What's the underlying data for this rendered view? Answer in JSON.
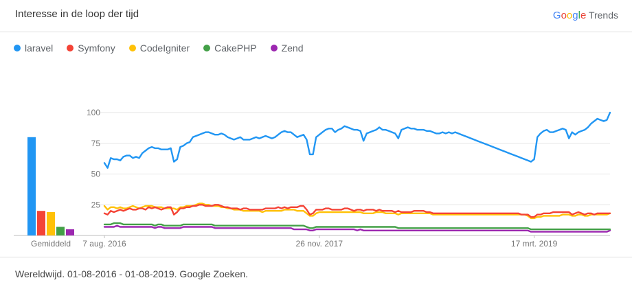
{
  "header": {
    "title": "Interesse in de loop der tijd"
  },
  "brand": {
    "letters": [
      {
        "ch": "G",
        "color": "#4285F4"
      },
      {
        "ch": "o",
        "color": "#EA4335"
      },
      {
        "ch": "o",
        "color": "#FBBC05"
      },
      {
        "ch": "g",
        "color": "#4285F4"
      },
      {
        "ch": "l",
        "color": "#34A853"
      },
      {
        "ch": "e",
        "color": "#EA4335"
      }
    ],
    "suffix": "Trends"
  },
  "footer": {
    "text": "Wereldwijd. 01-08-2016 - 01-08-2019. Google Zoeken."
  },
  "chart_data": {
    "type": "line",
    "ylim": [
      0,
      100
    ],
    "yticks": [
      "100",
      "75",
      "50",
      "25"
    ],
    "ytick_values": [
      100,
      75,
      50,
      25
    ],
    "xticks": [
      {
        "label": "7 aug. 2016",
        "index": 0
      },
      {
        "label": "26 nov. 2017",
        "index": 68
      },
      {
        "label": "17 mrt. 2019",
        "index": 136
      }
    ],
    "legend_position": "top-left",
    "average_label": "Gemiddeld",
    "series": [
      {
        "name": "laravel",
        "color": "#2196F3",
        "average": 80,
        "values": [
          59,
          55,
          63,
          62,
          62,
          61,
          64,
          65,
          65,
          63,
          64,
          63,
          67,
          69,
          71,
          72,
          71,
          71,
          70,
          70,
          70,
          71,
          60,
          62,
          72,
          73,
          75,
          76,
          80,
          81,
          82,
          83,
          84,
          84,
          83,
          82,
          82,
          83,
          82,
          80,
          79,
          78,
          79,
          80,
          78,
          78,
          78,
          79,
          80,
          79,
          80,
          81,
          80,
          79,
          80,
          82,
          84,
          85,
          84,
          84,
          82,
          80,
          81,
          82,
          78,
          66,
          66,
          80,
          82,
          84,
          86,
          87,
          87,
          84,
          86,
          87,
          89,
          88,
          87,
          86,
          86,
          85,
          77,
          83,
          84,
          85,
          86,
          88,
          86,
          86,
          85,
          84,
          83,
          79,
          86,
          87,
          88,
          87,
          87,
          86,
          86,
          86,
          85,
          85,
          84,
          83,
          83,
          84,
          83,
          84,
          83,
          84,
          83,
          82,
          81,
          80,
          79,
          78,
          77,
          76,
          75,
          74,
          73,
          72,
          71,
          70,
          69,
          68,
          67,
          66,
          65,
          64,
          63,
          62,
          61,
          60,
          62,
          80,
          83,
          85,
          86,
          84,
          84,
          85,
          86,
          87,
          86,
          79,
          84,
          82,
          84,
          85,
          86,
          88,
          91,
          93,
          95,
          94,
          93,
          94,
          100
        ]
      },
      {
        "name": "Symfony",
        "color": "#F44336",
        "average": 20,
        "values": [
          18,
          17,
          20,
          19,
          20,
          21,
          20,
          21,
          22,
          21,
          21,
          22,
          22,
          21,
          23,
          22,
          23,
          22,
          21,
          22,
          23,
          23,
          17,
          19,
          22,
          22,
          23,
          23,
          24,
          24,
          25,
          25,
          24,
          24,
          24,
          25,
          25,
          24,
          23,
          23,
          22,
          22,
          22,
          21,
          22,
          22,
          21,
          21,
          21,
          21,
          21,
          22,
          22,
          22,
          22,
          23,
          22,
          23,
          22,
          23,
          23,
          23,
          24,
          24,
          21,
          17,
          18,
          21,
          21,
          21,
          22,
          22,
          21,
          21,
          21,
          21,
          22,
          22,
          21,
          20,
          21,
          21,
          20,
          21,
          21,
          21,
          20,
          21,
          20,
          20,
          20,
          20,
          19,
          20,
          19,
          19,
          19,
          19,
          20,
          20,
          20,
          20,
          19,
          19,
          18,
          18,
          18,
          18,
          18,
          18,
          18,
          18,
          18,
          18,
          18,
          18,
          18,
          18,
          18,
          18,
          18,
          18,
          18,
          18,
          18,
          18,
          18,
          18,
          18,
          18,
          18,
          18,
          17,
          17,
          17,
          15,
          15,
          17,
          17,
          18,
          18,
          18,
          19,
          19,
          19,
          19,
          19,
          19,
          17,
          18,
          19,
          18,
          17,
          18,
          18,
          17,
          18,
          18,
          18,
          18,
          18
        ]
      },
      {
        "name": "CodeIgniter",
        "color": "#FFC107",
        "average": 19,
        "values": [
          24,
          21,
          23,
          23,
          22,
          23,
          22,
          22,
          23,
          24,
          23,
          22,
          23,
          24,
          24,
          24,
          23,
          23,
          23,
          22,
          22,
          22,
          22,
          21,
          23,
          23,
          24,
          24,
          24,
          25,
          26,
          26,
          25,
          25,
          24,
          24,
          24,
          23,
          23,
          22,
          22,
          21,
          21,
          21,
          20,
          20,
          20,
          20,
          20,
          20,
          19,
          20,
          20,
          20,
          20,
          20,
          20,
          21,
          21,
          21,
          21,
          20,
          20,
          20,
          18,
          16,
          16,
          18,
          19,
          19,
          19,
          19,
          19,
          19,
          19,
          19,
          19,
          19,
          19,
          19,
          19,
          19,
          18,
          18,
          18,
          18,
          19,
          19,
          19,
          18,
          18,
          18,
          18,
          17,
          18,
          18,
          18,
          18,
          18,
          18,
          18,
          18,
          18,
          18,
          17,
          17,
          17,
          17,
          17,
          17,
          17,
          17,
          17,
          17,
          17,
          17,
          17,
          17,
          17,
          17,
          17,
          17,
          17,
          17,
          17,
          17,
          17,
          17,
          17,
          17,
          17,
          17,
          17,
          17,
          16,
          14,
          14,
          15,
          15,
          16,
          16,
          16,
          16,
          16,
          16,
          17,
          17,
          17,
          16,
          16,
          17,
          17,
          16,
          16,
          17,
          17,
          17,
          17,
          17,
          17,
          18
        ]
      },
      {
        "name": "CakePHP",
        "color": "#43A047",
        "average": 7,
        "values": [
          9,
          9,
          9,
          10,
          10,
          10,
          9,
          9,
          9,
          9,
          9,
          9,
          9,
          9,
          9,
          9,
          8,
          9,
          9,
          8,
          8,
          8,
          8,
          8,
          8,
          9,
          9,
          9,
          9,
          9,
          9,
          9,
          9,
          9,
          9,
          8,
          8,
          8,
          8,
          8,
          8,
          8,
          8,
          8,
          8,
          8,
          8,
          8,
          8,
          8,
          8,
          8,
          8,
          8,
          8,
          8,
          8,
          8,
          8,
          8,
          8,
          8,
          8,
          8,
          7,
          6,
          6,
          7,
          7,
          7,
          7,
          7,
          7,
          7,
          7,
          7,
          7,
          7,
          7,
          7,
          7,
          7,
          7,
          7,
          7,
          7,
          7,
          7,
          7,
          7,
          7,
          7,
          7,
          6,
          6,
          6,
          6,
          6,
          6,
          6,
          6,
          6,
          6,
          6,
          6,
          6,
          6,
          6,
          6,
          6,
          6,
          6,
          6,
          6,
          6,
          6,
          6,
          6,
          6,
          6,
          6,
          6,
          6,
          6,
          6,
          6,
          6,
          6,
          6,
          6,
          6,
          6,
          6,
          6,
          6,
          5,
          5,
          5,
          5,
          5,
          5,
          5,
          5,
          5,
          5,
          5,
          5,
          5,
          5,
          5,
          5,
          5,
          5,
          5,
          5,
          5,
          5,
          5,
          5,
          5,
          5
        ]
      },
      {
        "name": "Zend",
        "color": "#9C27B0",
        "average": 5,
        "values": [
          7,
          7,
          7,
          7,
          8,
          7,
          7,
          7,
          7,
          7,
          7,
          7,
          7,
          7,
          7,
          7,
          6,
          7,
          7,
          6,
          6,
          6,
          6,
          6,
          6,
          7,
          7,
          7,
          7,
          7,
          7,
          7,
          7,
          7,
          7,
          6,
          6,
          6,
          6,
          6,
          6,
          6,
          6,
          6,
          6,
          6,
          6,
          6,
          6,
          6,
          6,
          6,
          6,
          6,
          6,
          6,
          6,
          6,
          6,
          6,
          5,
          5,
          5,
          5,
          5,
          4,
          4,
          5,
          5,
          5,
          5,
          5,
          5,
          5,
          5,
          5,
          5,
          5,
          5,
          5,
          4,
          5,
          4,
          4,
          4,
          4,
          4,
          4,
          4,
          4,
          4,
          4,
          4,
          4,
          4,
          4,
          4,
          4,
          4,
          4,
          4,
          4,
          4,
          4,
          4,
          4,
          4,
          4,
          4,
          4,
          4,
          4,
          4,
          4,
          4,
          4,
          4,
          4,
          4,
          4,
          4,
          4,
          4,
          4,
          4,
          4,
          4,
          4,
          4,
          4,
          4,
          4,
          4,
          4,
          4,
          3,
          3,
          3,
          3,
          3,
          3,
          3,
          3,
          3,
          3,
          3,
          3,
          3,
          3,
          3,
          3,
          3,
          3,
          3,
          3,
          3,
          3,
          3,
          3,
          3,
          4
        ]
      }
    ]
  }
}
